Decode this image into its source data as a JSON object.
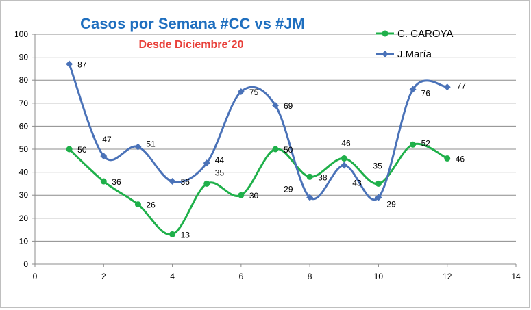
{
  "chart_data": {
    "type": "line",
    "title": "Casos por Semana #CC vs #JM",
    "subtitle": "Desde Diciembre´20",
    "xlim": [
      0,
      14
    ],
    "ylim": [
      0,
      100
    ],
    "x_ticks": [
      0,
      2,
      4,
      6,
      8,
      10,
      12,
      14
    ],
    "y_ticks": [
      0,
      10,
      20,
      30,
      40,
      50,
      60,
      70,
      80,
      90,
      100
    ],
    "grid": "horizontal",
    "smooth": true,
    "legend_position": "top-right",
    "series": [
      {
        "name": "C. CAROYA",
        "color": "#1fb04a",
        "marker": "circle",
        "x": [
          1,
          2,
          3,
          4,
          5,
          6,
          7,
          8,
          9,
          10,
          11,
          12
        ],
        "values": [
          50,
          36,
          26,
          13,
          35,
          30,
          50,
          38,
          46,
          35,
          52,
          46
        ]
      },
      {
        "name": "J.María",
        "color": "#4a72b8",
        "marker": "diamond",
        "x": [
          1,
          2,
          3,
          4,
          5,
          6,
          7,
          8,
          9,
          10,
          11,
          12
        ],
        "values": [
          87,
          47,
          51,
          36,
          44,
          75,
          69,
          29,
          43,
          29,
          76,
          77
        ]
      }
    ]
  }
}
